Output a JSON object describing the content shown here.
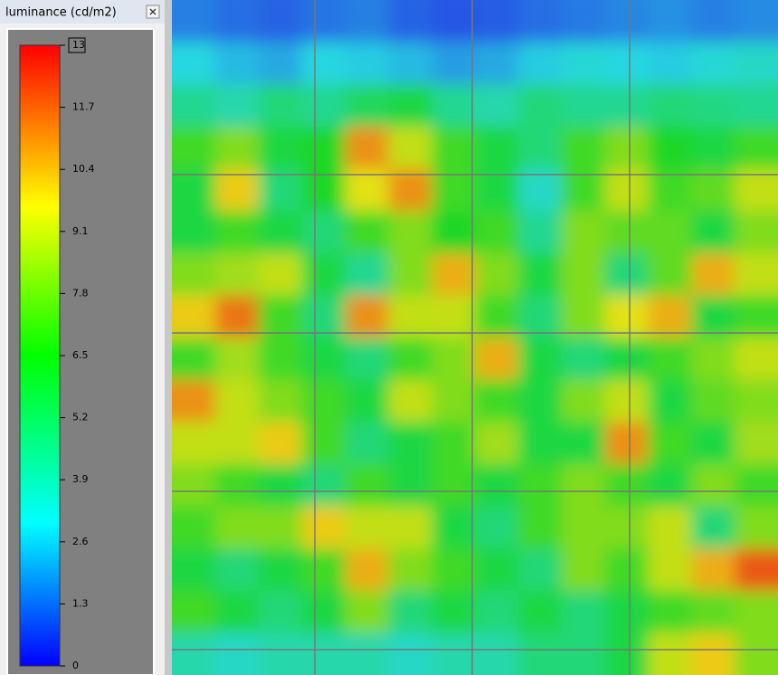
{
  "panel_title": "luminance (cd/m2)",
  "colorbar": {
    "clim": [
      0,
      13
    ],
    "ticks": [
      13,
      11.7,
      10.4,
      9.1,
      7.8,
      6.5,
      5.2,
      3.9,
      2.6,
      1.3,
      0
    ]
  },
  "heatmap": {
    "values": [
      [
        1.5,
        1.2,
        1.0,
        1.3,
        1.5,
        1.0,
        0.8,
        0.9,
        1.2,
        1.4,
        1.6,
        1.8,
        1.5,
        1.7
      ],
      [
        3,
        2.5,
        2.2,
        3,
        2.8,
        2.5,
        2,
        2.2,
        2.8,
        3.2,
        3,
        2.8,
        3.2,
        3.5
      ],
      [
        4.5,
        4,
        5,
        4.5,
        5.5,
        6,
        4.5,
        4,
        5,
        4.5,
        4.5,
        5,
        4.8,
        4.5
      ],
      [
        7,
        8,
        6,
        6.5,
        11,
        9,
        7,
        6,
        5,
        7,
        8,
        6.5,
        6,
        7
      ],
      [
        6,
        10,
        5,
        6.5,
        9.5,
        11,
        7,
        6,
        3.5,
        7,
        9,
        7,
        7.5,
        9
      ],
      [
        6,
        7,
        6,
        5,
        7,
        8,
        6.5,
        7,
        4.5,
        8,
        7.5,
        7.5,
        6,
        8
      ],
      [
        8,
        8.5,
        9,
        6,
        4.5,
        8,
        10.5,
        8,
        6,
        8,
        5,
        7.5,
        10.5,
        9
      ],
      [
        10,
        11.5,
        7,
        5,
        11,
        9,
        9,
        7,
        5,
        8,
        9.5,
        10.5,
        6,
        7
      ],
      [
        7,
        8.5,
        7,
        6,
        5,
        7,
        8,
        10.5,
        6,
        5,
        6,
        7,
        8,
        9
      ],
      [
        11,
        9,
        8,
        7,
        6,
        9,
        8,
        7,
        6,
        8,
        9,
        6,
        7.5,
        8
      ],
      [
        9,
        9,
        10,
        7,
        5,
        6,
        7,
        8.5,
        6,
        6,
        11,
        7,
        6,
        8.5
      ],
      [
        8,
        7,
        6,
        5,
        7,
        6,
        7,
        6,
        7,
        8,
        7,
        6,
        8,
        7
      ],
      [
        7,
        8,
        8,
        10,
        9,
        9,
        6,
        5,
        7,
        8,
        8,
        9,
        5,
        8
      ],
      [
        6,
        5,
        6,
        7,
        10.5,
        8,
        7,
        6,
        5,
        8,
        7,
        9,
        10.5,
        12
      ],
      [
        7,
        6,
        5,
        6,
        8,
        5,
        6,
        5,
        6,
        5,
        6,
        7,
        7.5,
        8
      ],
      [
        4,
        3.5,
        4,
        4,
        4,
        3.5,
        4,
        4,
        5,
        5,
        6,
        9,
        10,
        8
      ]
    ]
  }
}
